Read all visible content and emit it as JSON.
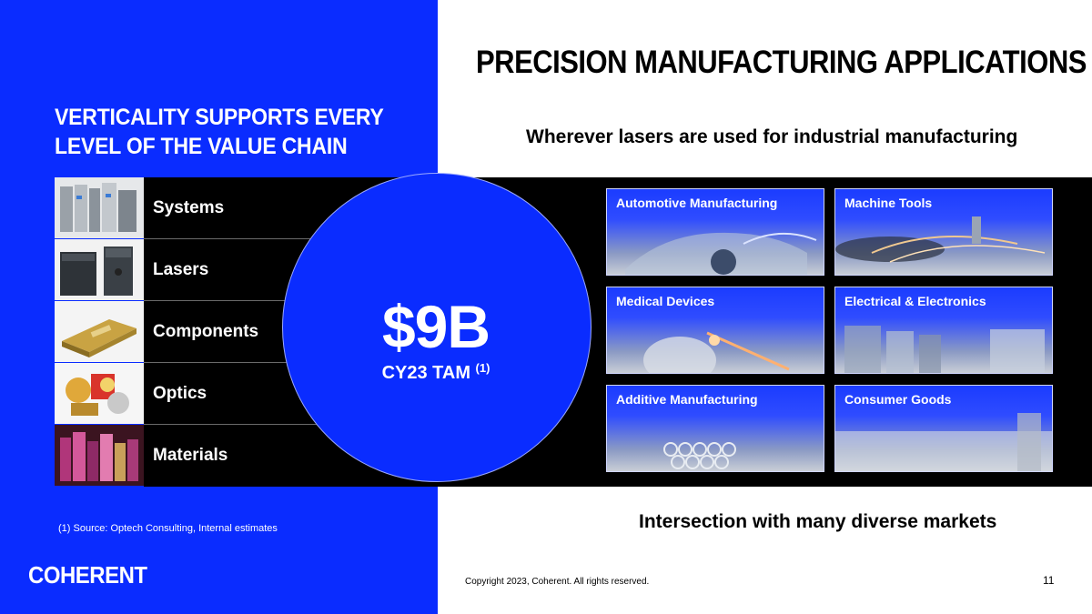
{
  "left": {
    "title_line1": "VERTICALITY SUPPORTS EVERY",
    "title_line2": "LEVEL OF THE VALUE CHAIN",
    "value_chain": [
      {
        "label": "Systems",
        "icon": "systems-image"
      },
      {
        "label": "Lasers",
        "icon": "lasers-image"
      },
      {
        "label": "Components",
        "icon": "components-image"
      },
      {
        "label": "Optics",
        "icon": "optics-image"
      },
      {
        "label": "Materials",
        "icon": "materials-image"
      }
    ],
    "footnote": "(1) Source: Optech Consulting, Internal estimates",
    "logo": "COHERENT"
  },
  "tam": {
    "value": "$9B",
    "label": "CY23 TAM",
    "footnote_ref": "(1)"
  },
  "right": {
    "title": "PRECISION MANUFACTURING APPLICATIONS",
    "subtitle": "Wherever lasers are used for industrial manufacturing",
    "applications": [
      {
        "label": "Automotive Manufacturing"
      },
      {
        "label": "Machine Tools"
      },
      {
        "label": "Medical Devices"
      },
      {
        "label": "Electrical & Electronics"
      },
      {
        "label": "Additive Manufacturing"
      },
      {
        "label": "Consumer Goods"
      }
    ],
    "bottom_text": "Intersection with many diverse markets"
  },
  "footer": {
    "copyright": "Copyright 2023, Coherent. All rights reserved.",
    "page_number": "11"
  },
  "colors": {
    "brand_blue": "#0a2cff",
    "band": "#000000",
    "text_dark": "#000000",
    "text_light": "#ffffff"
  }
}
